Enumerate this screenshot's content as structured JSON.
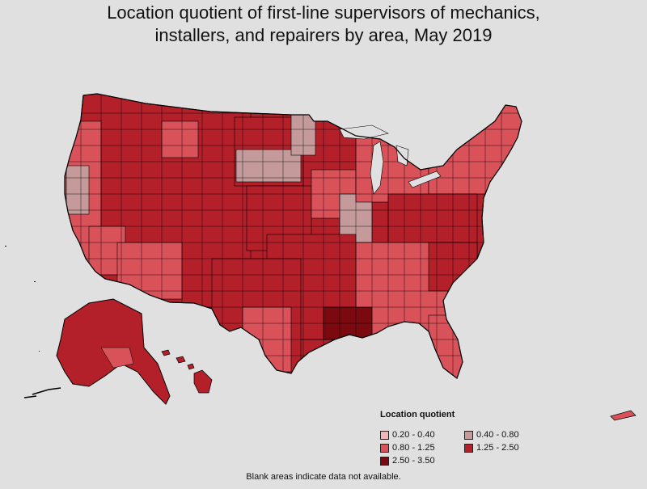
{
  "title_line1": "Location quotient of first-line supervisors of mechanics,",
  "title_line2": "installers, and repairers by area, May 2019",
  "legend": {
    "title": "Location quotient",
    "items": [
      {
        "label": "0.20 - 0.40",
        "color": "#f2b6b8"
      },
      {
        "label": "0.40 - 0.80",
        "color": "#c49a9a"
      },
      {
        "label": "0.80 - 1.25",
        "color": "#d9525a"
      },
      {
        "label": "1.25 - 2.50",
        "color": "#b3202a"
      },
      {
        "label": "2.50 - 3.50",
        "color": "#7a0a10"
      }
    ]
  },
  "footnote": "Blank areas indicate data not available.",
  "colors": {
    "background": "#e0e0e0",
    "border": "#000000"
  }
}
